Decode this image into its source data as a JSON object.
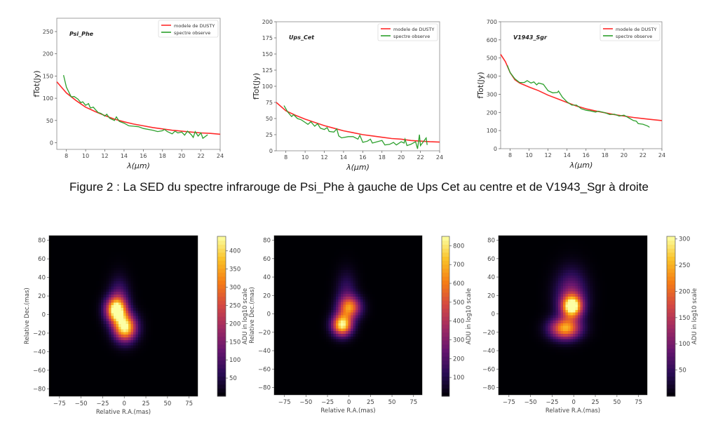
{
  "caption": "Figure 2 : La SED du spectre infrarouge de Psi_Phe à gauche de Ups Cet au centre et de V1943_Sgr à droite",
  "colors": {
    "model": "#ff2a2a",
    "observed": "#2ca02c"
  },
  "chart_data": [
    {
      "type": "line",
      "title": "Psi_Phe",
      "xlabel": "λ(μm)",
      "ylabel": "fTot(Jy)",
      "xlim": [
        7,
        24
      ],
      "ylim": [
        -15,
        280
      ],
      "xticks": [
        8,
        10,
        12,
        14,
        16,
        18,
        20,
        22,
        24
      ],
      "yticks": [
        0,
        50,
        100,
        150,
        200,
        250
      ],
      "legend": "top-right",
      "series": [
        {
          "name": "modele de DUSTY",
          "x": [
            7,
            8,
            9,
            10,
            11,
            12,
            13,
            14,
            15,
            16,
            17,
            18,
            19,
            20,
            21,
            22,
            23,
            24
          ],
          "y": [
            137,
            112,
            95,
            80,
            70,
            61,
            53,
            47,
            42,
            38,
            34,
            31,
            28,
            26,
            24,
            22,
            21,
            19
          ]
        },
        {
          "name": "spectre observe",
          "x": [
            7.7,
            8,
            8.5,
            8.8,
            9.2,
            9.5,
            9.7,
            10,
            10.3,
            10.5,
            10.8,
            11,
            11.3,
            11.6,
            12,
            12.2,
            12.5,
            12.8,
            13,
            13.2,
            13.5,
            14,
            14.5,
            15,
            15.5,
            16,
            17,
            17.5,
            18,
            18.2,
            18.5,
            19,
            19.3,
            19.6,
            20,
            20.3,
            20.6,
            21,
            21.2,
            21.4,
            21.7,
            22,
            22.2,
            22.7
          ],
          "y": [
            152,
            125,
            103,
            104,
            98,
            90,
            92,
            84,
            88,
            78,
            80,
            75,
            68,
            66,
            60,
            64,
            55,
            52,
            50,
            58,
            48,
            44,
            38,
            37,
            36,
            32,
            28,
            25,
            27,
            30,
            25,
            20,
            26,
            22,
            24,
            17,
            26,
            18,
            12,
            25,
            15,
            22,
            10,
            18
          ]
        }
      ]
    },
    {
      "type": "line",
      "title": "Ups_Cet",
      "xlabel": "λ(μm)",
      "ylabel": "fTot(Jy)",
      "xlim": [
        7,
        24
      ],
      "ylim": [
        0,
        200
      ],
      "xticks": [
        8,
        10,
        12,
        14,
        16,
        18,
        20,
        22,
        24
      ],
      "yticks": [
        0,
        25,
        50,
        75,
        100,
        125,
        150,
        175,
        200
      ],
      "legend": "top-right",
      "series": [
        {
          "name": "modele de DUSTY",
          "x": [
            7,
            8,
            9,
            10,
            11,
            12,
            13,
            14,
            15,
            16,
            17,
            18,
            19,
            20,
            21,
            22,
            23,
            24
          ],
          "y": [
            75,
            62,
            55,
            49,
            44,
            39,
            35,
            31,
            28,
            25,
            23,
            21,
            19,
            18,
            16,
            15,
            14,
            13.5
          ]
        },
        {
          "name": "spectre observe",
          "x": [
            7.8,
            8.2,
            8.6,
            8.8,
            9.2,
            9.6,
            10,
            10.3,
            10.6,
            11,
            11.3,
            11.6,
            12,
            12.3,
            12.5,
            13,
            13.3,
            13.5,
            13.8,
            14.5,
            15,
            15.5,
            15.7,
            16,
            16.5,
            16.8,
            17,
            17.5,
            18,
            18.3,
            18.8,
            19.2,
            19.5,
            20,
            20.3,
            20.4,
            20.6,
            21,
            21.5,
            21.7,
            21.9,
            22,
            22.6,
            22.7
          ],
          "y": [
            70,
            60,
            53,
            56,
            50,
            48,
            44,
            41,
            45,
            38,
            42,
            35,
            33,
            36,
            30,
            29,
            34,
            23,
            20,
            22,
            22,
            18,
            24,
            13,
            15,
            18,
            12,
            14,
            16,
            9,
            10,
            13,
            9,
            14,
            12,
            18,
            8,
            10,
            14,
            3,
            25,
            8,
            20,
            9
          ]
        }
      ]
    },
    {
      "type": "line",
      "title": "V1943_Sgr",
      "xlabel": "λ(μm)",
      "ylabel": "fTot(Jy)",
      "xlim": [
        7,
        24
      ],
      "ylim": [
        0,
        700
      ],
      "xticks": [
        8,
        10,
        12,
        14,
        16,
        18,
        20,
        22,
        24
      ],
      "yticks": [
        0,
        100,
        200,
        300,
        400,
        500,
        600,
        700
      ],
      "legend": "top-right",
      "series": [
        {
          "name": "modele de DUSTY",
          "x": [
            7,
            7.5,
            8,
            8.5,
            9,
            10,
            11,
            12,
            13,
            14,
            15,
            16,
            17,
            18,
            19,
            20,
            21,
            22,
            23,
            24
          ],
          "y": [
            520,
            480,
            420,
            380,
            362,
            340,
            320,
            295,
            275,
            255,
            235,
            220,
            208,
            198,
            188,
            180,
            172,
            166,
            160,
            155
          ]
        },
        {
          "name": "spectre observe",
          "x": [
            7.7,
            8,
            8.5,
            9,
            9.5,
            9.8,
            10.2,
            10.5,
            10.8,
            11,
            11.5,
            12,
            12.5,
            13,
            13.1,
            13.5,
            14,
            14.5,
            15,
            15.5,
            16,
            16.5,
            17,
            17.3,
            18,
            18.5,
            19,
            19.5,
            20,
            20.5,
            21,
            21.3,
            21.5,
            22,
            22.5,
            22.7
          ],
          "y": [
            460,
            420,
            385,
            365,
            365,
            375,
            362,
            368,
            352,
            362,
            355,
            320,
            308,
            310,
            318,
            285,
            258,
            240,
            240,
            220,
            212,
            208,
            202,
            207,
            198,
            188,
            190,
            180,
            185,
            170,
            155,
            152,
            138,
            135,
            125,
            118
          ]
        }
      ]
    },
    {
      "type": "heatmap",
      "label": "Psi_Phe",
      "xlabel": "Relative R.A.(mas)",
      "ylabel": "Relative Dec.(mas)",
      "xlim": [
        -87,
        85
      ],
      "ylim": [
        -88,
        85
      ],
      "colormap": "inferno",
      "xticks": [
        -75,
        -50,
        -25,
        0,
        25,
        50,
        75
      ],
      "yticks": [
        -80,
        -60,
        -40,
        -20,
        0,
        20,
        40,
        60,
        80
      ],
      "colorbar": {
        "label": "ADU in log10 scale",
        "range": [
          0,
          440
        ],
        "ticks": [
          50,
          100,
          150,
          200,
          250,
          300,
          350,
          400
        ]
      },
      "sources": [
        {
          "x": -10,
          "y": 5,
          "peak": 420,
          "sx": 8,
          "sy": 9
        },
        {
          "x": 1,
          "y": -14,
          "peak": 430,
          "sx": 9,
          "sy": 10
        },
        {
          "x": -6,
          "y": 15,
          "peak": 120,
          "sx": 8,
          "sy": 16
        }
      ]
    },
    {
      "type": "heatmap",
      "label": "Ups_Cet",
      "xlabel": "Relative R.A.(mas)",
      "ylabel": "Relative Dec.(mas)",
      "xlim": [
        -87,
        85
      ],
      "ylim": [
        -88,
        85
      ],
      "colormap": "inferno",
      "xticks": [
        -75,
        -50,
        -25,
        0,
        25,
        50,
        75
      ],
      "yticks": [
        -80,
        -60,
        -40,
        -20,
        0,
        20,
        40,
        60,
        80
      ],
      "colorbar": {
        "label": "ADU in log10 scale",
        "range": [
          0,
          850
        ],
        "ticks": [
          100,
          200,
          300,
          400,
          500,
          600,
          700,
          800
        ]
      },
      "sources": [
        {
          "x": 1,
          "y": 7,
          "peak": 560,
          "sx": 9,
          "sy": 8
        },
        {
          "x": -8,
          "y": -12,
          "peak": 830,
          "sx": 8,
          "sy": 8
        },
        {
          "x": -3,
          "y": 22,
          "peak": 160,
          "sx": 8,
          "sy": 16
        }
      ]
    },
    {
      "type": "heatmap",
      "label": "V1943_Sgr",
      "xlabel": "Relative R.A.(mas)",
      "ylabel": "",
      "xlim": [
        -87,
        85
      ],
      "ylim": [
        -88,
        85
      ],
      "colormap": "inferno",
      "xticks": [
        -75,
        -50,
        -25,
        0,
        25,
        50,
        75
      ],
      "yticks": [
        -80,
        -60,
        -40,
        -20,
        0,
        20,
        40,
        60,
        80
      ],
      "colorbar": {
        "label": "ADU in log10 scale",
        "range": [
          0,
          305
        ],
        "ticks": [
          50,
          100,
          150,
          200,
          250,
          300
        ]
      },
      "sources": [
        {
          "x": -2,
          "y": 8,
          "peak": 290,
          "sx": 8,
          "sy": 8
        },
        {
          "x": -10,
          "y": -16,
          "peak": 240,
          "sx": 12,
          "sy": 8
        },
        {
          "x": -3,
          "y": 20,
          "peak": 110,
          "sx": 12,
          "sy": 18
        }
      ]
    }
  ]
}
